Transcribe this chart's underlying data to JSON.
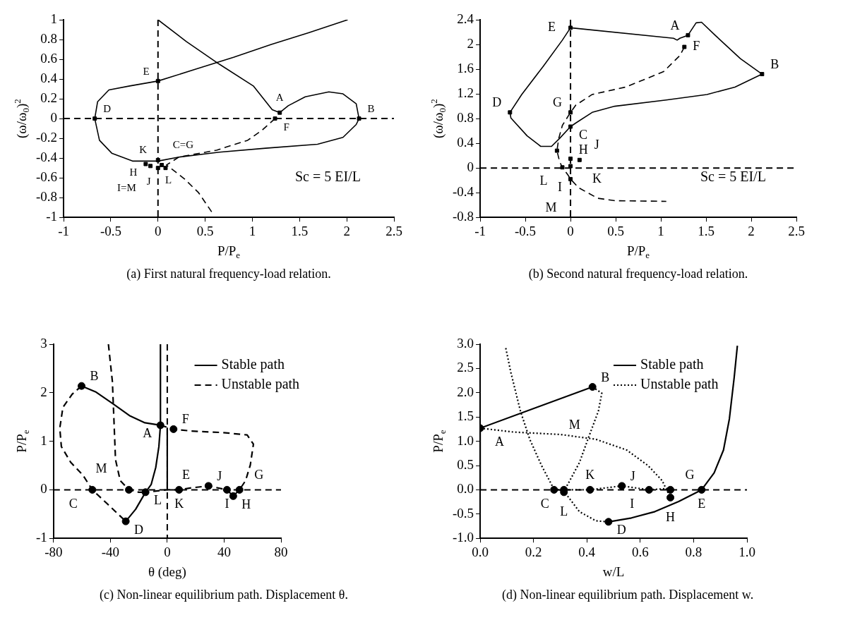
{
  "chart_data": [
    {
      "type": "line",
      "title": "(a) First natural frequency-load relation.",
      "xlabel": "P/P$_{e}$",
      "ylabel": "(ω/ω$_{0}$)$^{2}$",
      "xlim": [
        -1,
        2.5
      ],
      "xticks": [
        -1,
        -0.5,
        0,
        0.5,
        1,
        1.5,
        2,
        2.5
      ],
      "ylim": [
        -1,
        1
      ],
      "yticks": [
        -1,
        -0.8,
        -0.6,
        -0.4,
        -0.2,
        0,
        0.2,
        0.4,
        0.6,
        0.8,
        1
      ],
      "ref_lines": [
        {
          "axis": "x",
          "value": 0,
          "line_style": "dashed"
        },
        {
          "axis": "y",
          "value": 0,
          "line_style": "dashed"
        }
      ],
      "series": [
        {
          "type": "line",
          "line_style": "solid",
          "color": "#000000",
          "x": [
            2.01,
            1.6,
            1.2,
            0.8,
            0.4,
            0,
            -0.3,
            -0.52,
            -0.64,
            -0.67,
            -0.62,
            -0.49,
            -0.27,
            0,
            0.22,
            0.65,
            1.14,
            1.69,
            1.96,
            2.1,
            2.13,
            2.1,
            1.96,
            1.81,
            1.56,
            1.38,
            1.29,
            1.21,
            1.01,
            0.65,
            0.3,
            0
          ],
          "values": [
            1,
            0.87,
            0.75,
            0.62,
            0.5,
            0.38,
            0.33,
            0.29,
            0.17,
            0,
            -0.22,
            -0.35,
            -0.43,
            -0.43,
            -0.39,
            -0.34,
            -0.3,
            -0.26,
            -0.19,
            -0.06,
            0,
            0.15,
            0.25,
            0.27,
            0.22,
            0.13,
            0.06,
            0.09,
            0.33,
            0.55,
            0.78,
            1
          ]
        },
        {
          "type": "line",
          "line_style": "dashed",
          "color": "#000000",
          "x": [
            1.24,
            1.1,
            0.95,
            0.62,
            0.22,
            0.09,
            0.2,
            0.28,
            0.43,
            0.58
          ],
          "values": [
            0,
            -0.12,
            -0.22,
            -0.32,
            -0.39,
            -0.47,
            -0.55,
            -0.61,
            -0.75,
            -0.96
          ]
        },
        {
          "type": "scatter",
          "marker": "square",
          "color": "#000000",
          "x": [
            0,
            -0.67,
            1.29,
            1.24,
            2.13,
            0,
            -0.13,
            -0.08,
            0,
            0.04,
            0.08
          ],
          "values": [
            0.38,
            0,
            0.06,
            0,
            0,
            -0.42,
            -0.46,
            -0.48,
            -0.5,
            -0.47,
            -0.5
          ]
        }
      ],
      "annotations": [
        {
          "text": "E",
          "x": 0,
          "y": 0.38
        },
        {
          "text": "D",
          "x": -0.67,
          "y": 0
        },
        {
          "text": "A",
          "x": 1.29,
          "y": 0.06
        },
        {
          "text": "F",
          "x": 1.24,
          "y": 0
        },
        {
          "text": "B",
          "x": 2.13,
          "y": 0
        },
        {
          "text": "C=G",
          "x": 0,
          "y": -0.42
        },
        {
          "text": "H",
          "x": -0.13,
          "y": -0.46
        },
        {
          "text": "L",
          "x": -0.08,
          "y": -0.48
        },
        {
          "text": "I=M",
          "x": 0,
          "y": -0.5
        },
        {
          "text": "K",
          "x": 0.04,
          "y": -0.47
        },
        {
          "text": "J",
          "x": 0.08,
          "y": -0.5
        },
        "Sc = 5 EI/L"
      ]
    },
    {
      "type": "line",
      "title": "(b) Second natural frequency-load relation.",
      "xlabel": "P/P$_{e}$",
      "ylabel": "(ω/ω$_{0}$)$^{2}$",
      "xlim": [
        -1,
        2.5
      ],
      "xticks": [
        -1,
        -0.5,
        0,
        0.5,
        1,
        1.5,
        2,
        2.5
      ],
      "ylim": [
        -0.8,
        2.4
      ],
      "yticks": [
        -0.8,
        -0.4,
        0,
        0.4,
        0.8,
        1.2,
        1.6,
        2,
        2.4
      ],
      "ref_lines": [
        {
          "axis": "x",
          "value": 0,
          "line_style": "dashed"
        },
        {
          "axis": "y",
          "value": 0,
          "line_style": "dashed"
        }
      ],
      "series": [
        {
          "type": "line",
          "line_style": "solid",
          "color": "#000000",
          "x": [
            0,
            1.14,
            1.18,
            1.21,
            1.3,
            1.39,
            1.45,
            1.6,
            1.88,
            2.12,
            1.82,
            1.51,
            1.06,
            0.49,
            0.24,
            0.06,
            0,
            -0.12,
            -0.21,
            -0.33,
            -0.48,
            -0.66,
            -0.67
          ],
          "values": [
            2.27,
            2.1,
            2.07,
            2.1,
            2.15,
            2.35,
            2.36,
            2.15,
            1.77,
            1.52,
            1.31,
            1.19,
            1.1,
            1,
            0.9,
            0.73,
            0.67,
            0.48,
            0.35,
            0.35,
            0.52,
            0.81,
            0.9
          ]
        },
        {
          "type": "line",
          "line_style": "solid",
          "color": "#000000",
          "x": [
            -0.67,
            -0.54,
            -0.3,
            -0.09,
            0
          ],
          "values": [
            0.9,
            1.19,
            1.65,
            2.07,
            2.27
          ]
        },
        {
          "type": "line",
          "line_style": "dashed",
          "color": "#000000",
          "x": [
            1.26,
            1.21,
            1.03,
            0.61,
            0.24,
            0.06,
            0,
            -0.09,
            -0.13,
            -0.15,
            -0.12,
            -0.09,
            -0.03,
            0,
            0.09,
            0.3,
            0.49,
            1.06
          ],
          "values": [
            1.96,
            1.82,
            1.56,
            1.31,
            1.19,
            1.02,
            0.9,
            0.69,
            0.48,
            0.28,
            0.1,
            0.01,
            -0.11,
            -0.18,
            -0.32,
            -0.49,
            -0.53,
            -0.54
          ]
        },
        {
          "type": "scatter",
          "marker": "square",
          "color": "#000000",
          "x": [
            0,
            1.3,
            1.26,
            2.12,
            -0.67,
            0,
            0,
            -0.15,
            0,
            0.1,
            -0.09,
            0,
            0
          ],
          "values": [
            2.27,
            2.15,
            1.96,
            1.52,
            0.9,
            0.9,
            0.67,
            0.28,
            0.15,
            0.13,
            0.01,
            0.03,
            -0.18
          ]
        }
      ],
      "annotations": [
        {
          "text": "E",
          "x": 0,
          "y": 2.27
        },
        {
          "text": "A",
          "x": 1.3,
          "y": 2.15
        },
        {
          "text": "F",
          "x": 1.26,
          "y": 1.96
        },
        {
          "text": "B",
          "x": 2.12,
          "y": 1.52
        },
        {
          "text": "D",
          "x": -0.67,
          "y": 0.9
        },
        {
          "text": "G",
          "x": 0,
          "y": 0.9
        },
        {
          "text": "C",
          "x": 0,
          "y": 0.67
        },
        {
          "text": "H",
          "x": -0.15,
          "y": 0.28
        },
        {
          "text": "K",
          "x": 0,
          "y": 0.15
        },
        {
          "text": "J",
          "x": 0.1,
          "y": 0.13
        },
        {
          "text": "L",
          "x": -0.09,
          "y": 0.01
        },
        {
          "text": "I",
          "x": 0,
          "y": -0.18
        },
        {
          "text": "M",
          "x": 0.09,
          "y": -0.32
        },
        "Sc = 5 EI/L"
      ]
    },
    {
      "type": "line",
      "title": "(c) Non-linear equilibrium path. Displacement θ.",
      "xlabel": "θ (deg)",
      "ylabel": "P/P$_{e}$",
      "xlim": [
        -80,
        80
      ],
      "xticks": [
        -80,
        -40,
        0,
        40,
        80
      ],
      "ylim": [
        -1,
        3
      ],
      "yticks": [
        -1,
        0,
        1,
        2,
        3
      ],
      "legend": "top right",
      "ref_lines": [
        {
          "axis": "x",
          "value": 0,
          "line_style": "dashed"
        },
        {
          "axis": "y",
          "value": 0,
          "line_style": "dashed"
        }
      ],
      "series": [
        {
          "type": "line",
          "name": "Stable path",
          "line_style": "solid",
          "color": "#000000",
          "x": [
            -60.3,
            -50.5,
            -38.6,
            -26.6,
            -15.7,
            -4.8,
            -5.9,
            -8.1,
            -11.3,
            -15.3,
            -22.2,
            -29.2
          ],
          "values": [
            2.14,
            2.02,
            1.78,
            1.53,
            1.38,
            1.33,
            0.89,
            0.46,
            0.11,
            -0.05,
            -0.4,
            -0.65
          ]
        },
        {
          "type": "line",
          "line_style": "solid",
          "color": "#000000",
          "x": [
            -4.8,
            -4.8
          ],
          "values": [
            3,
            1.33
          ]
        },
        {
          "type": "line",
          "line_style": "solid",
          "color": "#000000",
          "x": [
            0,
            0
          ],
          "values": [
            1.27,
            0
          ]
        },
        {
          "type": "line",
          "name": "Unstable path",
          "line_style": "dashed",
          "color": "#000000",
          "x": [
            -60.3,
            -66.9,
            -73.4,
            -75.6,
            -74.5,
            -68,
            -59.3,
            -52.7,
            -41.8,
            -29.2
          ],
          "values": [
            2.14,
            1.97,
            1.7,
            1.27,
            0.89,
            0.57,
            0.3,
            0,
            -0.3,
            -0.65
          ]
        },
        {
          "type": "line",
          "line_style": "dashed",
          "color": "#000000",
          "x": [
            -4.8,
            4.4,
            17,
            38.8,
            56.2,
            60.6,
            58.4,
            55.1,
            50.8,
            46.4,
            42,
            29,
            17,
            8.3,
            0,
            -15.3
          ],
          "values": [
            1.33,
            1.25,
            1.21,
            1.18,
            1.13,
            0.94,
            0.51,
            0.19,
            0,
            -0.13,
            0,
            0.08,
            0.04,
            0,
            0,
            -0.05
          ]
        },
        {
          "type": "line",
          "line_style": "dashed",
          "color": "#000000",
          "x": [
            -41.4,
            -38.6,
            -37.5,
            -36.4,
            -33.1,
            -27,
            -20,
            -15.3
          ],
          "values": [
            3,
            2.23,
            1.43,
            0.62,
            0.19,
            0,
            -0.05,
            -0.05
          ]
        },
        {
          "type": "scatter",
          "marker": "circle",
          "color": "#000000",
          "x": [
            -60.3,
            -4.8,
            4.4,
            -52.7,
            -27,
            -15.3,
            8.3,
            29,
            42,
            50.8,
            46.4,
            -29.2
          ],
          "values": [
            2.14,
            1.33,
            1.25,
            0,
            0,
            -0.05,
            0,
            0.08,
            0,
            0,
            -0.13,
            -0.65
          ]
        }
      ],
      "annotations": [
        {
          "text": "B",
          "x": -60.3,
          "y": 2.14
        },
        {
          "text": "A",
          "x": -4.8,
          "y": 1.33
        },
        {
          "text": "F",
          "x": 4.4,
          "y": 1.25
        },
        {
          "text": "C",
          "x": -52.7,
          "y": 0
        },
        {
          "text": "M",
          "x": -27,
          "y": 0
        },
        {
          "text": "E",
          "x": 0,
          "y": 0
        },
        {
          "text": "K",
          "x": 8.3,
          "y": 0
        },
        {
          "text": "J",
          "x": 29,
          "y": 0.08
        },
        {
          "text": "I",
          "x": 42,
          "y": 0
        },
        {
          "text": "G",
          "x": 50.8,
          "y": 0
        },
        {
          "text": "H",
          "x": 46.4,
          "y": -0.13
        },
        {
          "text": "L",
          "x": -15.3,
          "y": -0.05
        },
        {
          "text": "D",
          "x": -29.2,
          "y": -0.65
        }
      ]
    },
    {
      "type": "line",
      "title": "(d) Non-linear equilibrium path. Displacement w.",
      "xlabel": "w/L",
      "ylabel": "P/P$_{e}$",
      "xlim": [
        0,
        1
      ],
      "xticks": [
        {
          "value": 0,
          "label": "0.0"
        },
        {
          "value": 0.2,
          "label": "0.2"
        },
        {
          "value": 0.4,
          "label": "0.4"
        },
        {
          "value": 0.6,
          "label": "0.6"
        },
        {
          "value": 0.8,
          "label": "0.8"
        },
        {
          "value": 1,
          "label": "1.0"
        }
      ],
      "ylim": [
        -1,
        3
      ],
      "yticks": [
        {
          "value": -1,
          "label": "-1.0"
        },
        {
          "value": -0.5,
          "label": "-0.5"
        },
        {
          "value": 0,
          "label": "0.0"
        },
        {
          "value": 0.5,
          "label": "0.5"
        },
        {
          "value": 1,
          "label": "1.0"
        },
        {
          "value": 1.5,
          "label": "1.5"
        },
        {
          "value": 2,
          "label": "2.0"
        },
        {
          "value": 2.5,
          "label": "2.5"
        },
        {
          "value": 3,
          "label": "3.0"
        }
      ],
      "legend": "top right",
      "ref_lines": [
        {
          "axis": "y",
          "value": 0,
          "line_style": "dashed"
        }
      ],
      "series": [
        {
          "type": "line",
          "name": "Stable path",
          "line_style": "solid",
          "color": "#000000",
          "x": [
            0,
            0,
            0.421
          ],
          "values": [
            0,
            1.27,
            2.12
          ]
        },
        {
          "type": "line",
          "line_style": "solid",
          "color": "#000000",
          "x": [
            0.481,
            0.567,
            0.655,
            0.744,
            0.83,
            0.877,
            0.912,
            0.934,
            0.952,
            0.964
          ],
          "values": [
            -0.66,
            -0.58,
            -0.45,
            -0.24,
            0,
            0.35,
            0.82,
            1.46,
            2.31,
            2.97
          ]
        },
        {
          "type": "line",
          "name": "Unstable path",
          "line_style": "dotted",
          "color": "#000000",
          "x": [
            0.096,
            0.115,
            0.151,
            0.186,
            0.23,
            0.275,
            0.314,
            0.372,
            0.434,
            0.481
          ],
          "values": [
            2.92,
            2.42,
            1.62,
            1.04,
            0.5,
            0.03,
            -0.03,
            -0.45,
            -0.64,
            -0.66
          ]
        },
        {
          "type": "line",
          "line_style": "dotted",
          "color": "#000000",
          "x": [
            0.421,
            0.456,
            0.443,
            0.407,
            0.372,
            0.336,
            0.314
          ],
          "values": [
            2.12,
            1.99,
            1.62,
            1.09,
            0.56,
            0.19,
            -0.03
          ]
        },
        {
          "type": "line",
          "line_style": "dotted",
          "color": "#000000",
          "x": [
            0,
            0.124,
            0.301,
            0.434,
            0.549,
            0.629,
            0.682,
            0.713
          ],
          "values": [
            1.27,
            1.19,
            1.14,
            1.04,
            0.82,
            0.5,
            0.19,
            -0.16
          ]
        },
        {
          "type": "line",
          "line_style": "dotted",
          "color": "#000000",
          "x": [
            0.277,
            0.412,
            0.531,
            0.633,
            0.713
          ],
          "values": [
            0,
            0,
            0.08,
            0,
            0.03
          ]
        },
        {
          "type": "scatter",
          "marker": "circle",
          "color": "#000000",
          "x": [
            0,
            0.421,
            0.277,
            0.314,
            0.314,
            0.412,
            0.531,
            0.633,
            0.713,
            0.713,
            0.83,
            0.481
          ],
          "values": [
            1.27,
            2.12,
            0,
            0,
            -0.05,
            0,
            0.08,
            0,
            0,
            -0.16,
            0,
            -0.66
          ]
        }
      ],
      "annotations": [
        {
          "text": "A",
          "x": 0,
          "y": 1.27
        },
        {
          "text": "B",
          "x": 0.421,
          "y": 2.12
        },
        {
          "text": "M",
          "x": 0.301,
          "y": 1.14
        },
        {
          "text": "C",
          "x": 0.314,
          "y": 0
        },
        {
          "text": "K",
          "x": 0.412,
          "y": 0
        },
        {
          "text": "J",
          "x": 0.531,
          "y": 0.08
        },
        {
          "text": "I",
          "x": 0.633,
          "y": 0
        },
        {
          "text": "G",
          "x": 0.713,
          "y": 0
        },
        {
          "text": "E",
          "x": 0.83,
          "y": 0
        },
        {
          "text": "L",
          "x": 0.314,
          "y": -0.05
        },
        {
          "text": "H",
          "x": 0.713,
          "y": -0.16
        },
        {
          "text": "D",
          "x": 0.481,
          "y": -0.66
        }
      ]
    }
  ]
}
